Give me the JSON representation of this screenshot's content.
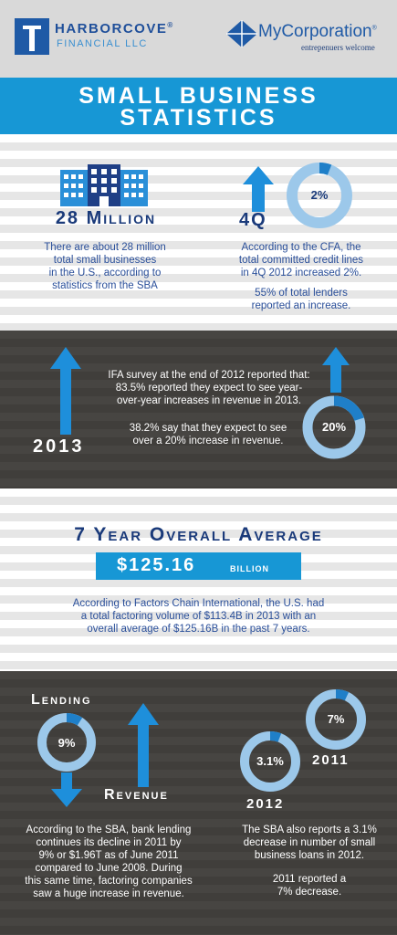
{
  "header": {
    "harborcove_name": "HARBORCOVE",
    "harborcove_reg": "®",
    "harborcove_sub": "FINANCIAL LLC",
    "mycorp_name": "MyCorporation",
    "mycorp_reg": "®",
    "mycorp_tagline": "entrepenuers welcome"
  },
  "title": {
    "line1": "SMALL BUSINESS",
    "line2": "STATISTICS"
  },
  "section1": {
    "left_heading": "28 Million",
    "left_text": [
      "There are about 28 million",
      "total small businesses",
      "in the U.S., according to",
      "statistics from the SBA"
    ],
    "right_heading": "4Q",
    "right_percent": "2%",
    "right_fraction": 0.02,
    "right_text": [
      "According to the CFA, the",
      "total committed credit lines",
      "in 4Q 2012 increased 2%."
    ],
    "right_text2": [
      "55% of total lenders",
      "reported an increase."
    ]
  },
  "section2": {
    "year": "2013",
    "text1": [
      "IFA survey at the end of 2012 reported that:",
      "83.5% reported they expect to see year-",
      "over-year increases in revenue in 2013."
    ],
    "text2": [
      "38.2% say that they expect to see",
      "over a 20% increase in revenue."
    ],
    "percent": "20%",
    "fraction": 0.2
  },
  "section3": {
    "heading": "7 Year Overall Average",
    "amount": "$125.16",
    "unit": "BILLION",
    "text": [
      "According to Factors Chain International, the U.S. had",
      "a total factoring volume of $113.4B in 2013 with an",
      "overall average of $125.16B in the past 7 years."
    ]
  },
  "section4": {
    "lending_label": "Lending",
    "revenue_label": "Revenue",
    "lending_percent": "9%",
    "lending_fraction": 0.09,
    "left_text": [
      "According to the SBA, bank lending",
      "continues its decline in 2011 by",
      "9% or $1.96T as of June 2011",
      "compared to June 2008.  During",
      "this same time, factoring companies",
      "saw a huge increase in revenue."
    ],
    "donut_2011_percent": "7%",
    "donut_2011_fraction": 0.07,
    "donut_2011_year": "2011",
    "donut_2012_percent": "3.1%",
    "donut_2012_fraction": 0.031,
    "donut_2012_year": "2012",
    "right_text": [
      "The SBA also reports a 3.1%",
      "decrease in number of small",
      "business loans in 2012."
    ],
    "right_text2": [
      "2011 reported a",
      "7% decrease."
    ]
  },
  "colors": {
    "accent_blue": "#1797d5",
    "navy": "#1a3a7a",
    "dark_bg": "#403e3b",
    "donut_light": "#9cc8ea",
    "donut_dark": "#1f7fc8"
  }
}
